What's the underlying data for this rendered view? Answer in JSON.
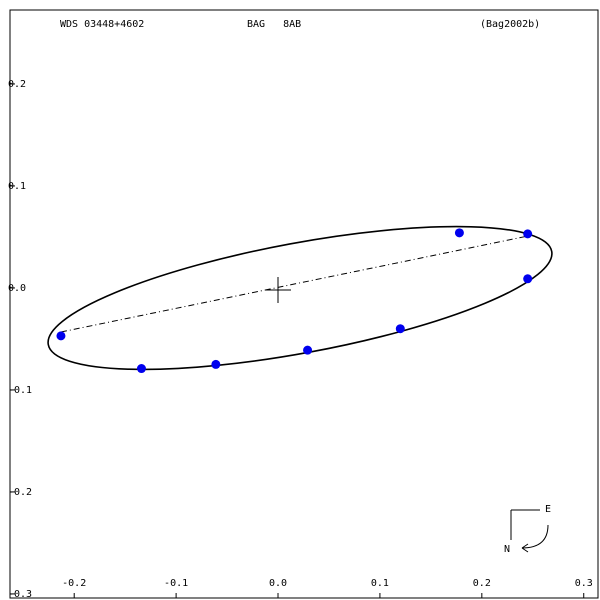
{
  "chart_data": {
    "type": "scatter",
    "title": "WDS 03448+4602",
    "subtitle": "BAG   8AB",
    "reference": "(Bag2002b)",
    "compass_east": "E",
    "compass_north": "N",
    "series": [
      {
        "color": "#0000ee",
        "x": [
          -0.213,
          -0.134,
          -0.061,
          0.029,
          0.12,
          0.178,
          0.245,
          0.245
        ],
        "values": [
          -0.047,
          -0.079,
          -0.075,
          -0.061,
          -0.04,
          0.054,
          0.053,
          0.009
        ]
      }
    ],
    "xlim": [
      -0.263,
      0.314
    ],
    "ylim": [
      -0.304,
      0.2725
    ],
    "xticks": [
      -0.2,
      -0.1,
      {
        "value": 0,
        "label": "0.0"
      },
      0.1,
      0.2,
      0.3
    ],
    "yticks": [
      0.2,
      0.1,
      {
        "value": 0,
        "label": "0.0"
      },
      -0.1,
      -0.2,
      -0.3
    ]
  }
}
